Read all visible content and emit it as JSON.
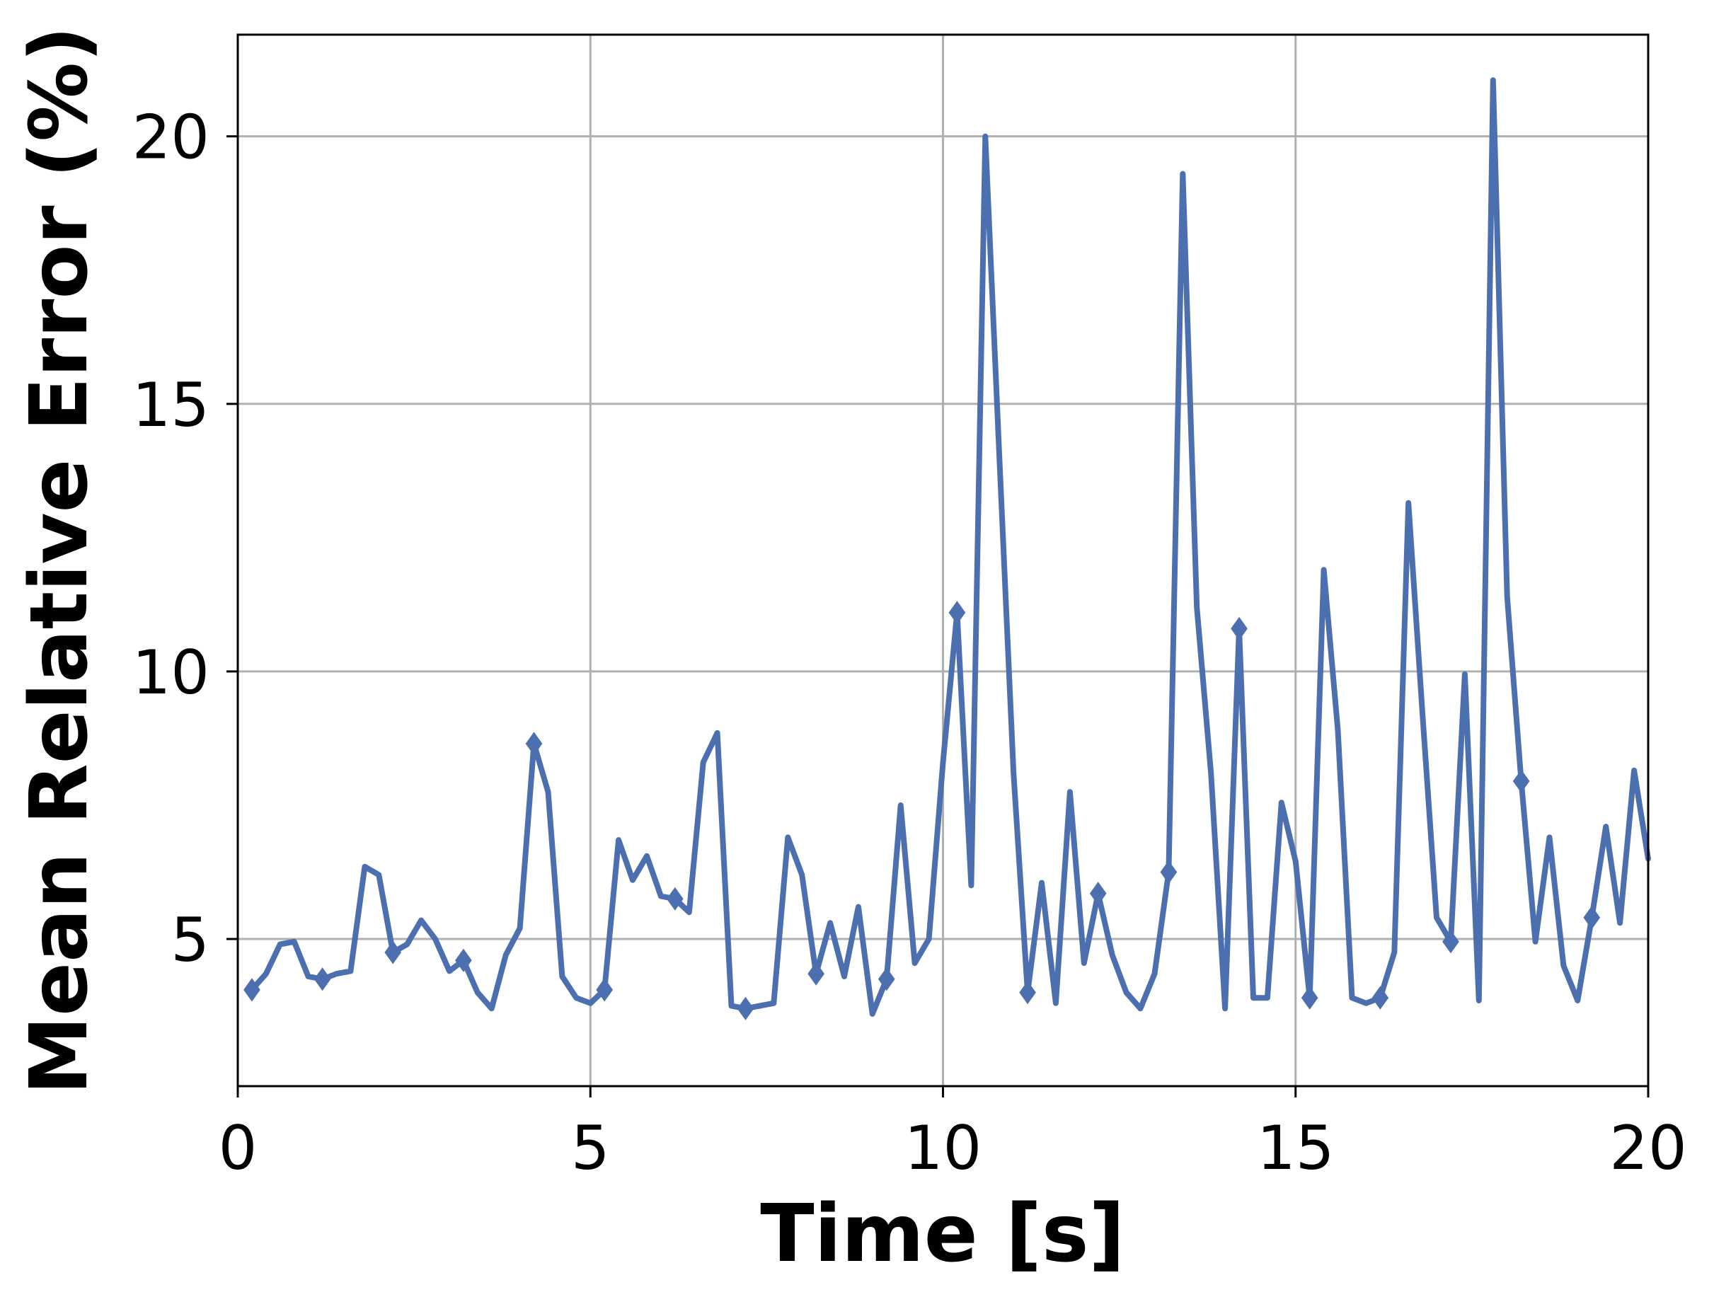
{
  "chart_data": {
    "type": "line",
    "title": "",
    "xlabel": "Time [s]",
    "ylabel": "Mean Relative Error (%)",
    "xlim": [
      0,
      20
    ],
    "ylim": [
      2.25,
      21.9
    ],
    "xticks": [
      0,
      5,
      10,
      15,
      20
    ],
    "yticks": [
      5,
      10,
      15,
      20
    ],
    "grid": true,
    "legend": "none",
    "line_color": "#4c6faf",
    "grid_color": "#b0b0b0",
    "series": [
      {
        "x": [
          0.2,
          0.4,
          0.6,
          0.8,
          1.0,
          1.2,
          1.4,
          1.6,
          1.8,
          2.0,
          2.2,
          2.4,
          2.6,
          2.8,
          3.0,
          3.2,
          3.4,
          3.6,
          3.8,
          4.0,
          4.2,
          4.4,
          4.6,
          4.8,
          5.0,
          5.2,
          5.4,
          5.6,
          5.8,
          6.0,
          6.2,
          6.4,
          6.6,
          6.8,
          7.0,
          7.2,
          7.4,
          7.6,
          7.8,
          8.0,
          8.2,
          8.4,
          8.6,
          8.8,
          9.0,
          9.2,
          9.4,
          9.6,
          9.8,
          10.0,
          10.2,
          10.4,
          10.6,
          10.8,
          11.0,
          11.2,
          11.4,
          11.6,
          11.8,
          12.0,
          12.2,
          12.4,
          12.6,
          12.8,
          13.0,
          13.2,
          13.4,
          13.6,
          13.8,
          14.0,
          14.2,
          14.4,
          14.6,
          14.8,
          15.0,
          15.2,
          15.4,
          15.6,
          15.8,
          16.0,
          16.2,
          16.4,
          16.6,
          16.8,
          17.0,
          17.2,
          17.4,
          17.6,
          17.8,
          18.0,
          18.2,
          18.4,
          18.6,
          18.8,
          19.0,
          19.2,
          19.4,
          19.6,
          19.8,
          20.0
        ],
        "y": [
          4.05,
          4.35,
          4.9,
          4.95,
          4.3,
          4.25,
          4.35,
          4.4,
          6.35,
          6.2,
          4.75,
          4.9,
          5.35,
          5.0,
          4.4,
          4.6,
          4.0,
          3.7,
          4.7,
          5.2,
          8.65,
          7.75,
          4.3,
          3.9,
          3.8,
          4.05,
          6.85,
          6.1,
          6.55,
          5.8,
          5.75,
          5.5,
          8.3,
          8.85,
          3.75,
          3.7,
          3.75,
          3.8,
          6.9,
          6.2,
          4.35,
          5.3,
          4.3,
          5.6,
          3.6,
          4.25,
          7.5,
          4.55,
          5.0,
          8.3,
          11.1,
          6.0,
          20.0,
          14.0,
          8.1,
          4.0,
          6.05,
          3.8,
          7.75,
          4.55,
          5.85,
          4.7,
          4.0,
          3.7,
          4.35,
          6.25,
          19.3,
          11.2,
          8.1,
          3.7,
          10.8,
          3.9,
          3.9,
          7.55,
          6.45,
          3.9,
          11.9,
          8.9,
          3.9,
          3.8,
          3.9,
          4.75,
          13.15,
          9.2,
          5.4,
          4.95,
          9.95,
          3.85,
          21.05,
          11.4,
          7.95,
          4.95,
          6.9,
          4.5,
          3.85,
          5.4,
          7.1,
          5.3,
          8.15,
          6.5
        ],
        "markers_at": [
          0.2,
          1.2,
          2.2,
          3.2,
          4.2,
          5.2,
          6.2,
          7.2,
          8.2,
          9.2,
          10.2,
          11.2,
          12.2,
          13.2,
          14.2,
          15.2,
          16.2,
          17.2,
          18.2,
          19.2
        ],
        "marker": "thin_diamond"
      }
    ]
  }
}
